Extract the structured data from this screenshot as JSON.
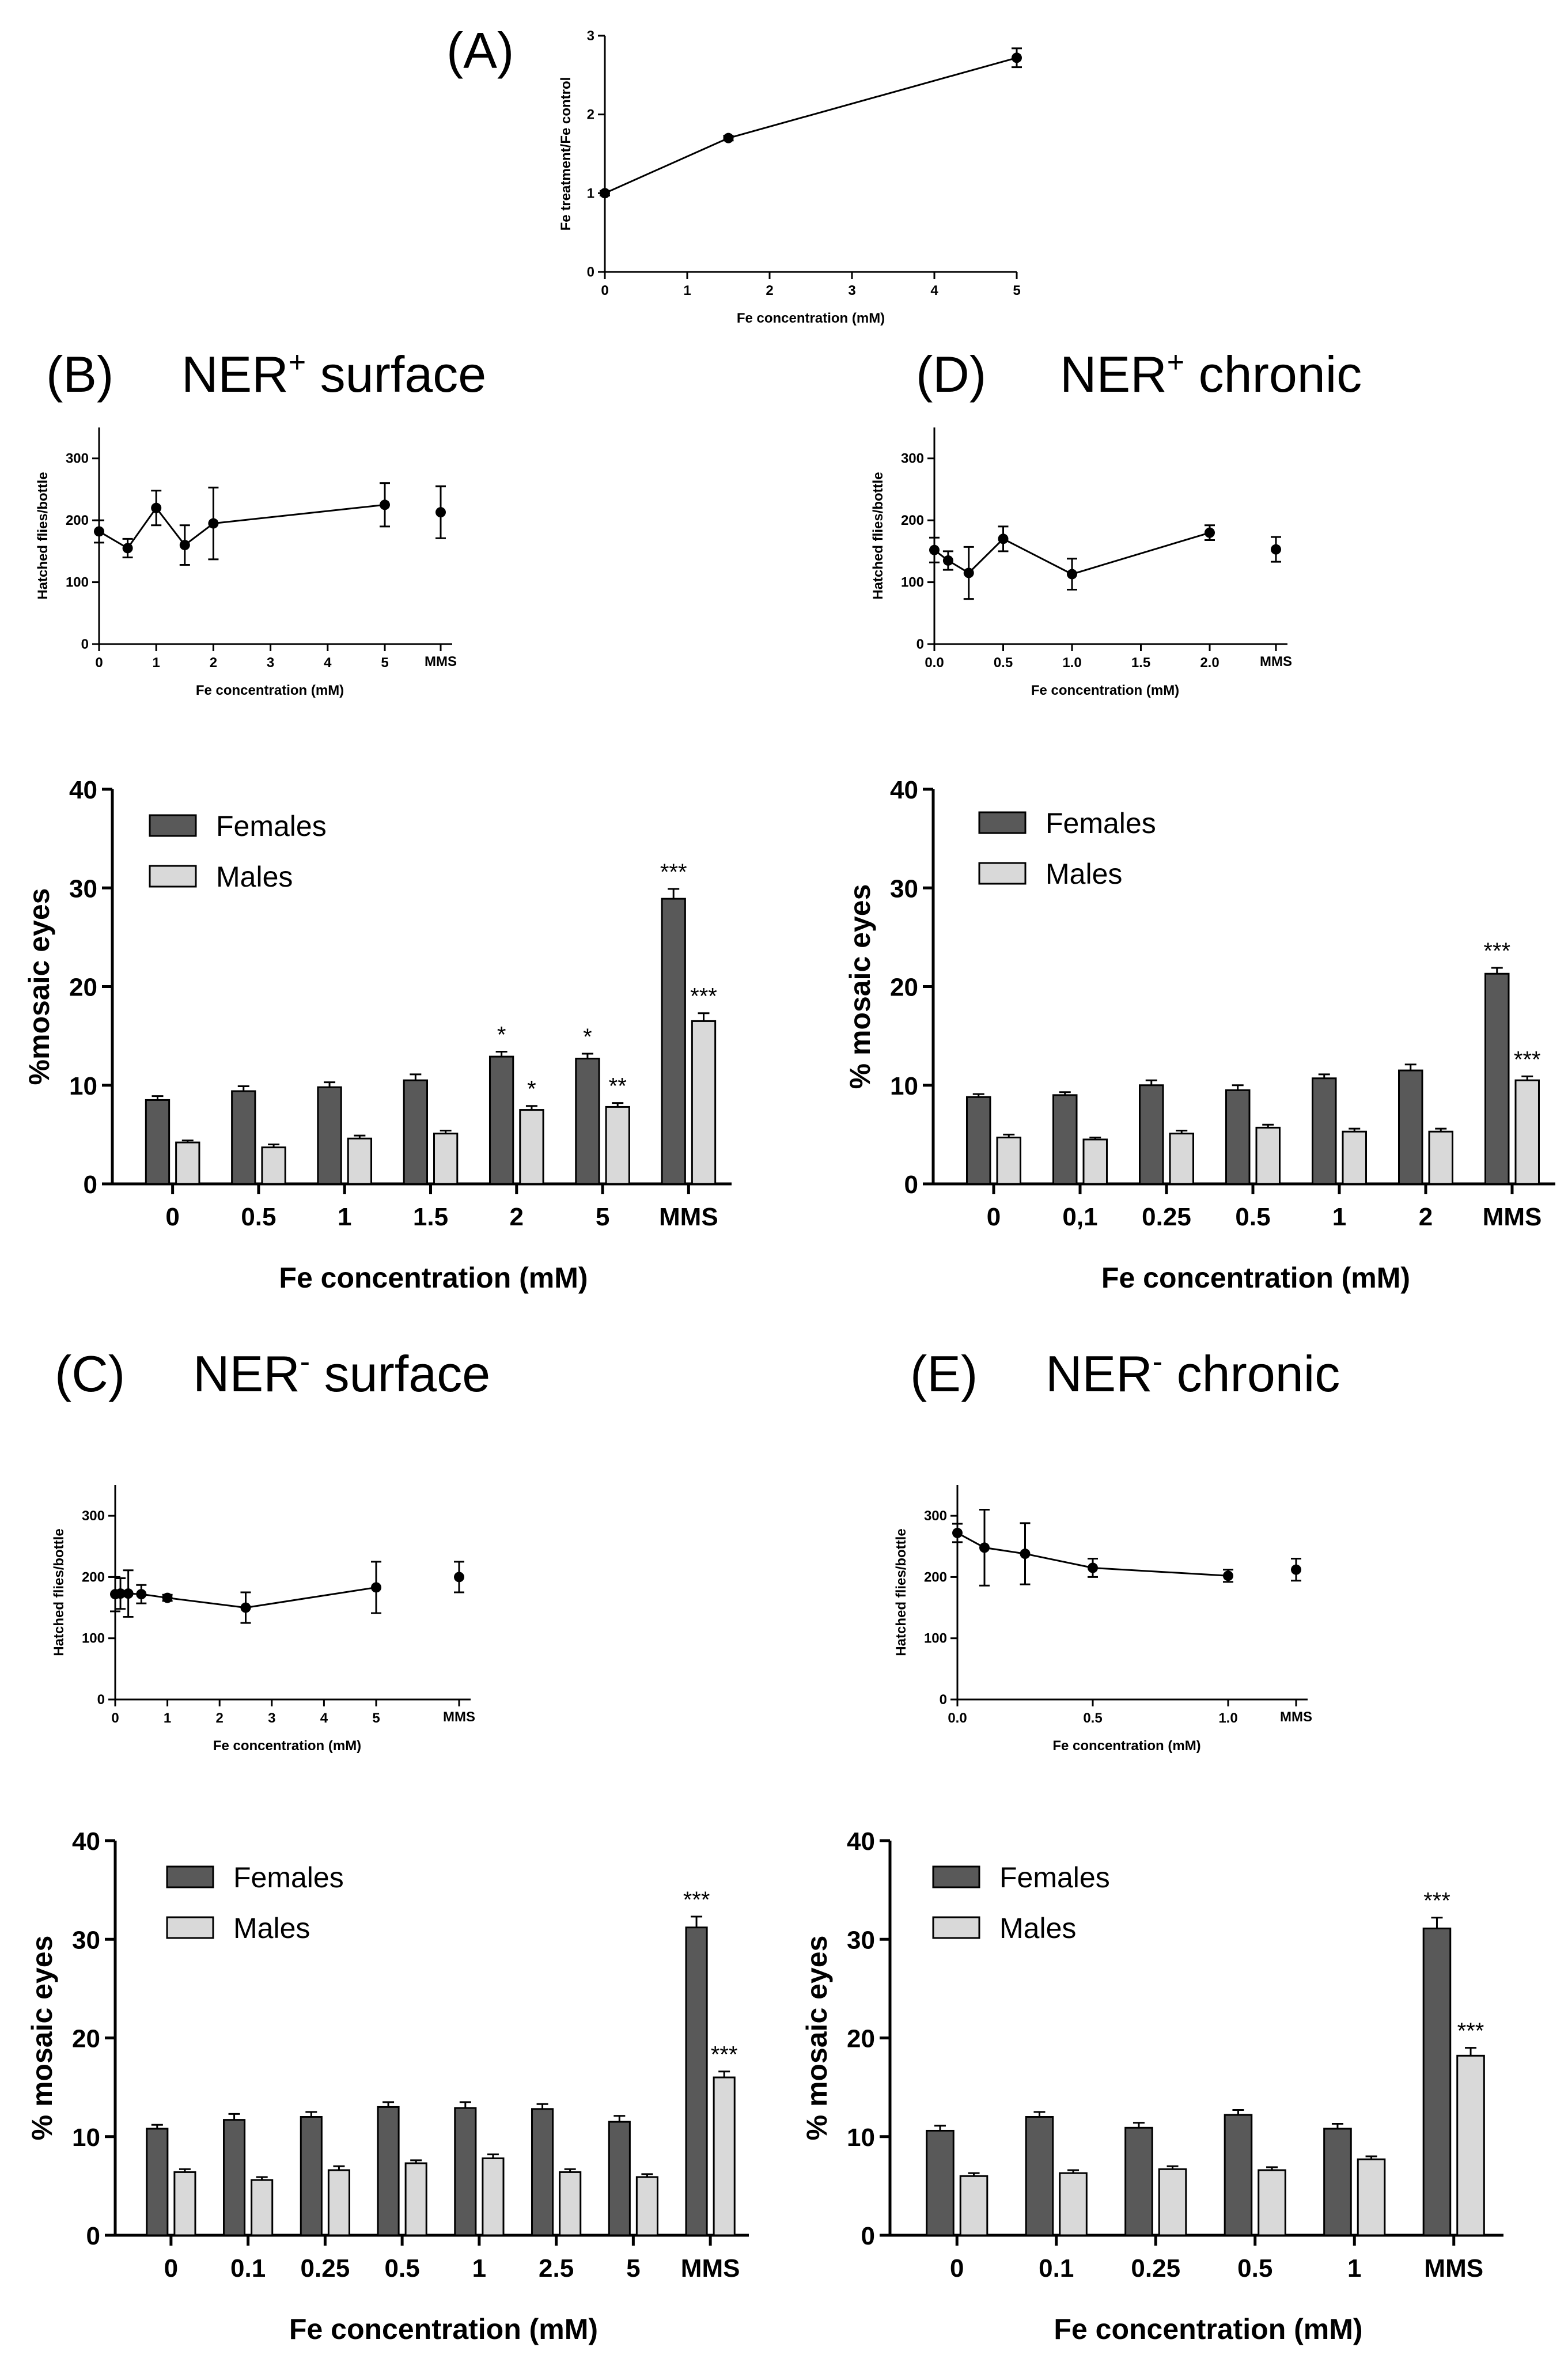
{
  "panels": {
    "A": {
      "letter": "(A)"
    },
    "B": {
      "letter": "(B)",
      "title_main": "NER",
      "title_sup": "+",
      "title_rest": " surface"
    },
    "C": {
      "letter": "(C)",
      "title_main": "NER",
      "title_sup": "-",
      "title_rest": " surface"
    },
    "D": {
      "letter": "(D)",
      "title_main": "NER",
      "title_sup": "+",
      "title_rest": " chronic"
    },
    "E": {
      "letter": "(E)",
      "title_main": "NER",
      "title_sup": "-",
      "title_rest": " chronic"
    }
  },
  "colors": {
    "females": "#595959",
    "males": "#d9d9d9",
    "axis": "#000000"
  },
  "chart_data": [
    {
      "id": "A",
      "type": "line",
      "x": [
        0,
        1.5,
        5
      ],
      "y": [
        1.0,
        1.7,
        2.72
      ],
      "err": [
        0.03,
        0.03,
        0.12
      ],
      "xticks": [
        "0",
        "1",
        "2",
        "3",
        "4",
        "5"
      ],
      "yticks": [
        "0",
        "1",
        "2",
        "3"
      ],
      "xlim": [
        0,
        5
      ],
      "ylim": [
        0,
        3
      ],
      "xlabel": "Fe concentration (mM)",
      "ylabel": "Fe treatment/Fe control"
    },
    {
      "id": "B-line",
      "type": "line",
      "x": [
        0,
        0.5,
        1,
        1.5,
        2,
        5
      ],
      "y": [
        182,
        155,
        220,
        160,
        195,
        225
      ],
      "err": [
        18,
        15,
        28,
        32,
        58,
        35
      ],
      "extra_point": {
        "label": "MMS",
        "y": 213,
        "err": 42
      },
      "xticks": [
        "0",
        "1",
        "2",
        "3",
        "4",
        "5"
      ],
      "yticks": [
        "0",
        "100",
        "200",
        "300"
      ],
      "xlim": [
        0,
        5
      ],
      "ylim": [
        0,
        350
      ],
      "xlabel": "Fe concentration (mM)",
      "ylabel": "Hatched flies/bottle"
    },
    {
      "id": "B-bar",
      "type": "bar",
      "categories": [
        "0",
        "0.5",
        "1",
        "1.5",
        "2",
        "5",
        "MMS"
      ],
      "series": [
        {
          "name": "Females",
          "values": [
            8.5,
            9.4,
            9.8,
            10.5,
            12.9,
            12.7,
            28.9
          ],
          "err": [
            0.4,
            0.5,
            0.5,
            0.6,
            0.5,
            0.5,
            1.0
          ]
        },
        {
          "name": "Males",
          "values": [
            4.2,
            3.7,
            4.6,
            5.1,
            7.5,
            7.8,
            16.5
          ],
          "err": [
            0.2,
            0.3,
            0.3,
            0.3,
            0.4,
            0.4,
            0.8
          ]
        }
      ],
      "stars": {
        "Females": [
          "",
          "",
          "",
          "",
          "*",
          "*",
          "***"
        ],
        "Males": [
          "",
          "",
          "",
          "",
          "*",
          "**",
          "***"
        ]
      },
      "yticks": [
        "0",
        "10",
        "20",
        "30",
        "40"
      ],
      "ylim": [
        0,
        40
      ],
      "xlabel": "Fe concentration (mM)",
      "ylabel": "%mosaic eyes"
    },
    {
      "id": "C-line",
      "type": "line",
      "x": [
        0,
        0.1,
        0.25,
        0.5,
        1,
        2.5,
        5
      ],
      "y": [
        172,
        173,
        173,
        172,
        166,
        150,
        183
      ],
      "err": [
        28,
        25,
        38,
        15,
        5,
        25,
        42
      ],
      "extra_point": {
        "label": "MMS",
        "y": 200,
        "err": 25
      },
      "xticks": [
        "0",
        "1",
        "2",
        "3",
        "4",
        "5"
      ],
      "yticks": [
        "0",
        "100",
        "200",
        "300"
      ],
      "xlim": [
        0,
        5
      ],
      "ylim": [
        0,
        350
      ],
      "xlabel": "Fe concentration (mM)",
      "ylabel": "Hatched flies/bottle"
    },
    {
      "id": "C-bar",
      "type": "bar",
      "categories": [
        "0",
        "0.1",
        "0.25",
        "0.5",
        "1",
        "2.5",
        "5",
        "MMS"
      ],
      "series": [
        {
          "name": "Females",
          "values": [
            10.8,
            11.7,
            12.0,
            13.0,
            12.9,
            12.8,
            11.5,
            31.2
          ],
          "err": [
            0.4,
            0.6,
            0.5,
            0.5,
            0.6,
            0.5,
            0.6,
            1.1
          ]
        },
        {
          "name": "Males",
          "values": [
            6.4,
            5.6,
            6.6,
            7.3,
            7.8,
            6.4,
            5.9,
            16.0
          ],
          "err": [
            0.3,
            0.3,
            0.4,
            0.3,
            0.4,
            0.3,
            0.3,
            0.6
          ]
        }
      ],
      "stars": {
        "Females": [
          "",
          "",
          "",
          "",
          "",
          "",
          "",
          "***"
        ],
        "Males": [
          "",
          "",
          "",
          "",
          "",
          "",
          "",
          "***"
        ]
      },
      "yticks": [
        "0",
        "10",
        "20",
        "30",
        "40"
      ],
      "ylim": [
        0,
        40
      ],
      "xlabel": "Fe concentration (mM)",
      "ylabel": "% mosaic eyes"
    },
    {
      "id": "D-line",
      "type": "line",
      "x": [
        0,
        0.1,
        0.25,
        0.5,
        1,
        2
      ],
      "y": [
        152,
        135,
        115,
        170,
        113,
        180
      ],
      "err": [
        20,
        15,
        42,
        20,
        25,
        12
      ],
      "extra_point": {
        "label": "MMS",
        "y": 153,
        "err": 20
      },
      "xticks": [
        "0.0",
        "0.5",
        "1.0",
        "1.5",
        "2.0"
      ],
      "yticks": [
        "0",
        "100",
        "200",
        "300"
      ],
      "xlim": [
        0,
        2
      ],
      "ylim": [
        0,
        350
      ],
      "xlabel": "Fe concentration (mM)",
      "ylabel": "Hatched flies/bottle"
    },
    {
      "id": "D-bar",
      "type": "bar",
      "categories": [
        "0",
        "0,1",
        "0.25",
        "0.5",
        "1",
        "2",
        "MMS"
      ],
      "series": [
        {
          "name": "Females",
          "values": [
            8.8,
            9.0,
            10.0,
            9.5,
            10.7,
            11.5,
            21.3
          ],
          "err": [
            0.3,
            0.3,
            0.5,
            0.5,
            0.4,
            0.6,
            0.6
          ]
        },
        {
          "name": "Males",
          "values": [
            4.7,
            4.5,
            5.1,
            5.7,
            5.3,
            5.3,
            10.5
          ],
          "err": [
            0.3,
            0.2,
            0.3,
            0.3,
            0.3,
            0.3,
            0.4
          ]
        }
      ],
      "stars": {
        "Females": [
          "",
          "",
          "",
          "",
          "",
          "",
          "***"
        ],
        "Males": [
          "",
          "",
          "",
          "",
          "",
          "",
          "***"
        ]
      },
      "yticks": [
        "0",
        "10",
        "20",
        "30",
        "40"
      ],
      "ylim": [
        0,
        40
      ],
      "xlabel": "Fe concentration (mM)",
      "ylabel": "% mosaic eyes"
    },
    {
      "id": "E-line",
      "type": "line",
      "x": [
        0,
        0.1,
        0.25,
        0.5,
        1
      ],
      "y": [
        272,
        248,
        238,
        215,
        202
      ],
      "err": [
        15,
        62,
        50,
        15,
        10
      ],
      "extra_point": {
        "label": "MMS",
        "y": 212,
        "err": 18
      },
      "xticks": [
        "0.0",
        "0.5",
        "1.0"
      ],
      "yticks": [
        "0",
        "100",
        "200",
        "300"
      ],
      "xlim": [
        0,
        1
      ],
      "ylim": [
        0,
        350
      ],
      "xlabel": "Fe concentration (mM)",
      "ylabel": "Hatched flies/bottle"
    },
    {
      "id": "E-bar",
      "type": "bar",
      "categories": [
        "0",
        "0.1",
        "0.25",
        "0.5",
        "1",
        "MMS"
      ],
      "series": [
        {
          "name": "Females",
          "values": [
            10.6,
            12.0,
            10.9,
            12.2,
            10.8,
            31.1
          ],
          "err": [
            0.5,
            0.5,
            0.5,
            0.5,
            0.5,
            1.1
          ]
        },
        {
          "name": "Males",
          "values": [
            6.0,
            6.3,
            6.7,
            6.6,
            7.7,
            18.2
          ],
          "err": [
            0.3,
            0.3,
            0.3,
            0.3,
            0.3,
            0.8
          ]
        }
      ],
      "stars": {
        "Females": [
          "",
          "",
          "",
          "",
          "",
          "***"
        ],
        "Males": [
          "",
          "",
          "",
          "",
          "",
          "***"
        ]
      },
      "yticks": [
        "0",
        "10",
        "20",
        "30",
        "40"
      ],
      "ylim": [
        0,
        40
      ],
      "xlabel": "Fe concentration (mM)",
      "ylabel": "% mosaic eyes"
    }
  ]
}
